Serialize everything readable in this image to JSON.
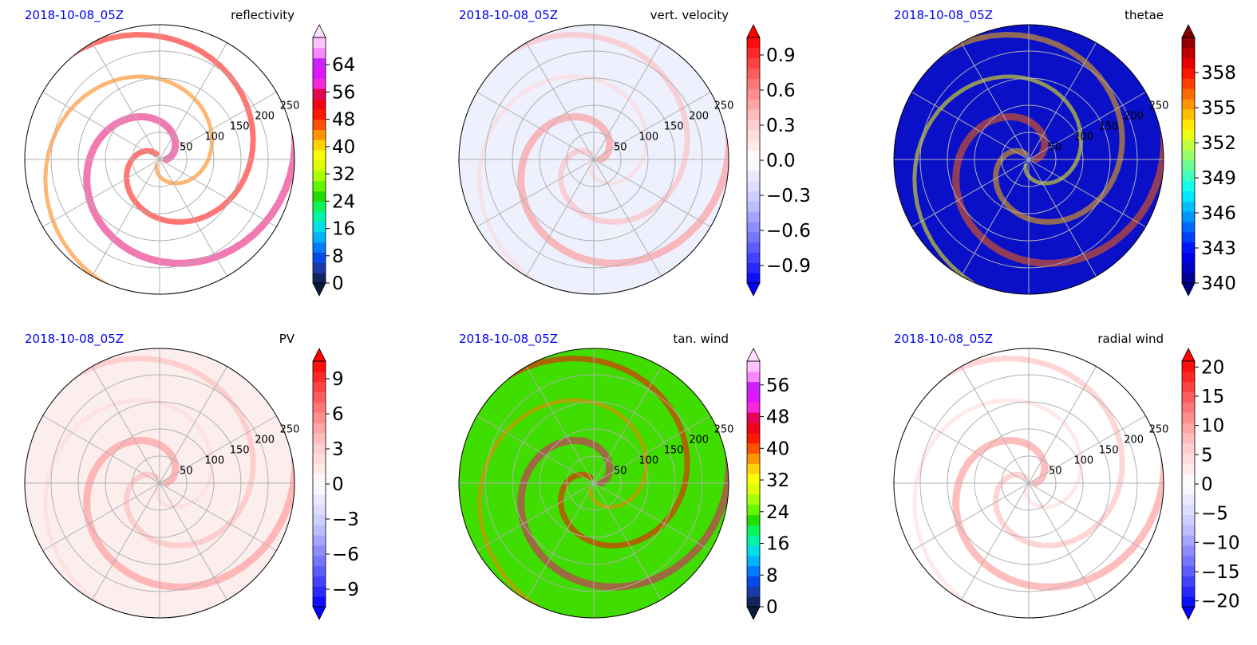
{
  "chart_data": [
    {
      "type": "polar_contour",
      "date": "2018-10-08_05Z",
      "title": "reflectivity",
      "colorbar": {
        "ticks": [
          0,
          8,
          16,
          24,
          32,
          40,
          48,
          56,
          64
        ],
        "tick_labels": [
          "0",
          "8",
          "16",
          "24",
          "32",
          "40",
          "48",
          "56",
          "64"
        ],
        "range": [
          0,
          72
        ],
        "extend": "both",
        "colormap": "nws-reflectivity"
      },
      "radial_ticks": [
        "50",
        "100",
        "150",
        "200",
        "250"
      ],
      "background": "#ffffff"
    },
    {
      "type": "polar_contour",
      "date": "2018-10-08_05Z",
      "title": "vert. velocity",
      "colorbar": {
        "ticks": [
          -0.9,
          -0.6,
          -0.3,
          0.0,
          0.3,
          0.6,
          0.9
        ],
        "tick_labels": [
          "−0.9",
          "−0.6",
          "−0.3",
          "0.0",
          "0.3",
          "0.6",
          "0.9"
        ],
        "range": [
          -1.05,
          1.05
        ],
        "extend": "both",
        "colormap": "bwr"
      },
      "radial_ticks": [
        "50",
        "100",
        "150",
        "200",
        "250"
      ],
      "background": "#eef0fd"
    },
    {
      "type": "polar_contour",
      "date": "2018-10-08_05Z",
      "title": "thetae",
      "colorbar": {
        "ticks": [
          340,
          343,
          346,
          349,
          352,
          355,
          358
        ],
        "tick_labels": [
          "340",
          "343",
          "346",
          "349",
          "352",
          "355",
          "358"
        ],
        "range": [
          340,
          361
        ],
        "extend": "both",
        "colormap": "jet"
      },
      "radial_ticks": [
        "50",
        "100",
        "150",
        "200",
        "250"
      ],
      "background": "#0a10c8"
    },
    {
      "type": "polar_contour",
      "date": "2018-10-08_05Z",
      "title": "PV",
      "colorbar": {
        "ticks": [
          -9,
          -6,
          -3,
          0,
          3,
          6,
          9
        ],
        "tick_labels": [
          "−9",
          "−6",
          "−3",
          "0",
          "3",
          "6",
          "9"
        ],
        "range": [
          -10.5,
          10.5
        ],
        "extend": "both",
        "colormap": "bwr"
      },
      "radial_ticks": [
        "50",
        "100",
        "150",
        "200",
        "250"
      ],
      "background": "#fdeeee"
    },
    {
      "type": "polar_contour",
      "date": "2018-10-08_05Z",
      "title": "tan. wind",
      "colorbar": {
        "ticks": [
          0,
          8,
          16,
          24,
          32,
          40,
          48,
          56
        ],
        "tick_labels": [
          "0",
          "8",
          "16",
          "24",
          "32",
          "40",
          "48",
          "56"
        ],
        "range": [
          0,
          62
        ],
        "extend": "both",
        "colormap": "nws-reflectivity"
      },
      "radial_ticks": [
        "50",
        "100",
        "150",
        "200",
        "250"
      ],
      "background": "#40dd00"
    },
    {
      "type": "polar_contour",
      "date": "2018-10-08_05Z",
      "title": "radial wind",
      "colorbar": {
        "ticks": [
          -20,
          -15,
          -10,
          -5,
          0,
          5,
          10,
          15,
          20
        ],
        "tick_labels": [
          "−20",
          "−15",
          "−10",
          "−5",
          "0",
          "5",
          "10",
          "15",
          "20"
        ],
        "range": [
          -21,
          21
        ],
        "extend": "both",
        "colormap": "bwr"
      },
      "radial_ticks": [
        "50",
        "100",
        "150",
        "200",
        "250"
      ],
      "background": "#ffffff"
    }
  ]
}
